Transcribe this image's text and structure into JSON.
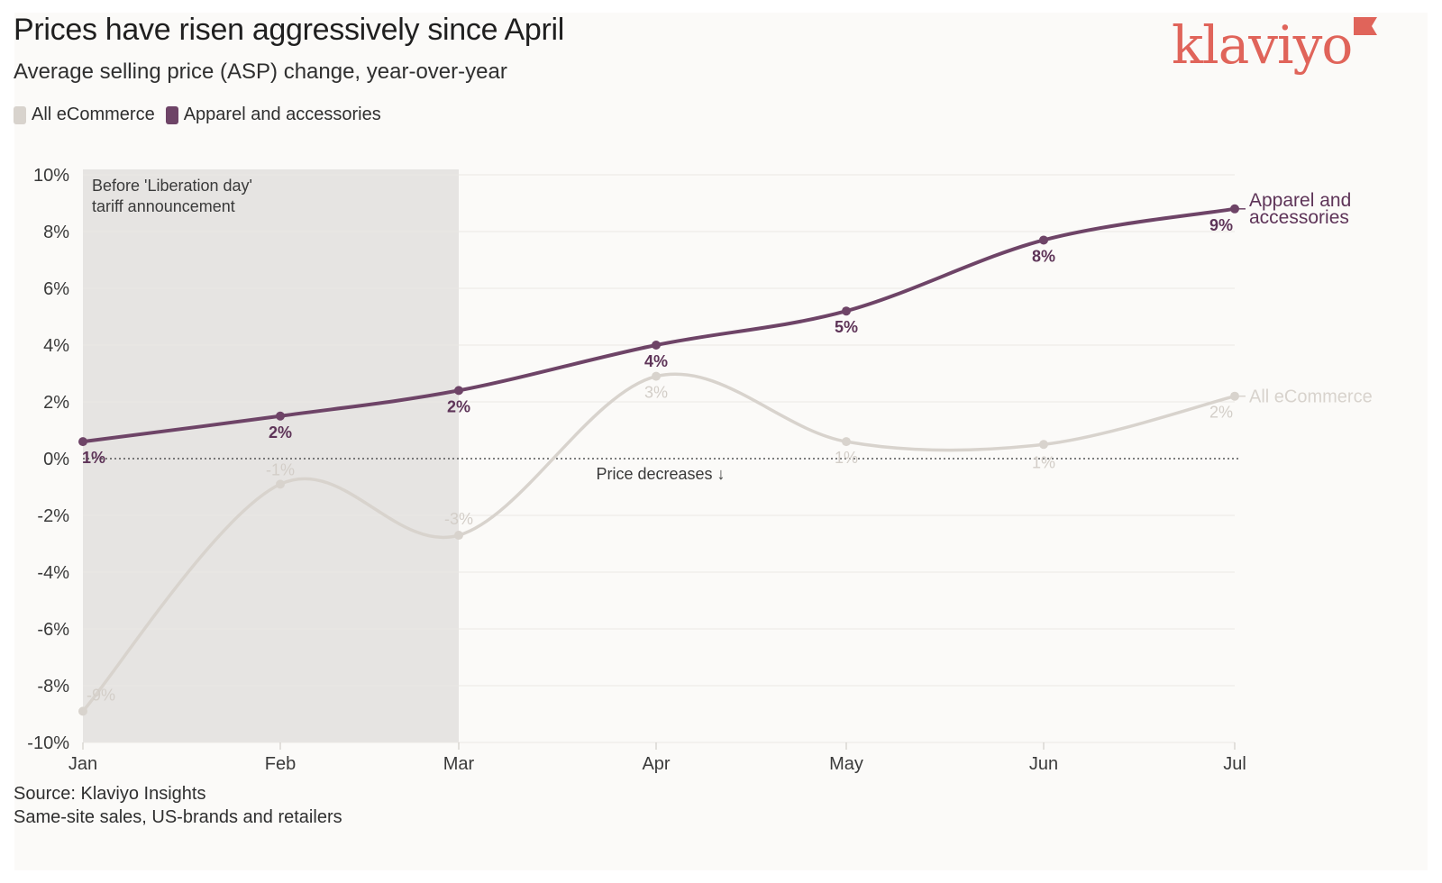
{
  "title": "Prices have risen aggressively since April",
  "subtitle": "Average selling price (ASP) change, year-over-year",
  "brand": {
    "logo_text": "klaviyo",
    "color": "#e0645a"
  },
  "legend": [
    {
      "label": "All eCommerce",
      "color": "#d8d3cd"
    },
    {
      "label": "Apparel and accessories",
      "color": "#6e4467"
    }
  ],
  "source_line1": "Source: Klaviyo Insights",
  "source_line2": "Same-site sales, US-brands and retailers",
  "chart_data": {
    "type": "line",
    "title": "Prices have risen aggressively since April",
    "ylabel": "",
    "xlabel": "",
    "categories": [
      "Jan",
      "Feb",
      "Mar",
      "Apr",
      "May",
      "Jun",
      "Jul"
    ],
    "y_ticks": [
      "10%",
      "8%",
      "6%",
      "4%",
      "2%",
      "0%",
      "-2%",
      "-4%",
      "-6%",
      "-8%",
      "-10%"
    ],
    "ylim": [
      -10,
      10
    ],
    "grid": true,
    "series": [
      {
        "name": "Apparel and accessories",
        "end_label": "Apparel and accessories",
        "color": "#6e4467",
        "values": [
          0.6,
          1.5,
          2.4,
          4.0,
          5.2,
          7.7,
          8.8
        ],
        "labels": [
          "1%",
          "2%",
          "2%",
          "4%",
          "5%",
          "8%",
          "9%"
        ]
      },
      {
        "name": "All eCommerce",
        "end_label": "All eCommerce",
        "color": "#d8d3cd",
        "values": [
          -8.9,
          -0.9,
          -2.7,
          2.9,
          0.6,
          0.5,
          2.2
        ],
        "labels": [
          "-9%",
          "-1%",
          "-3%",
          "3%",
          "1%",
          "1%",
          "2%"
        ]
      }
    ],
    "annotations": {
      "shaded_region": {
        "from": "Jan",
        "to": "Mar",
        "label_line1": "Before 'Liberation day'",
        "label_line2": "tariff announcement"
      },
      "zero_line_label": "Price decreases ↓"
    }
  }
}
